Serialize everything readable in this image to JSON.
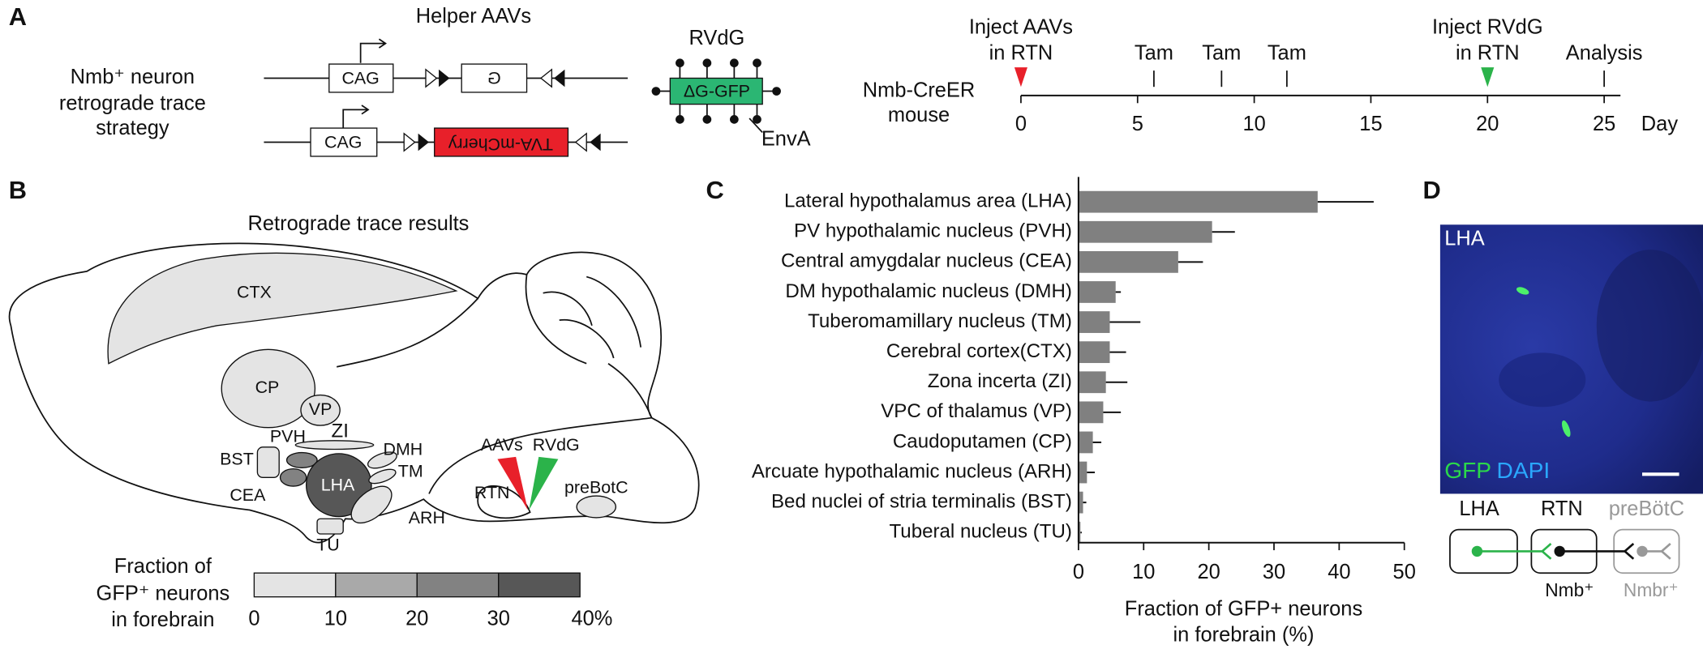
{
  "panel_a": {
    "letter": "A",
    "strategy": [
      "Nmb⁺ neuron",
      "retrograde trace",
      "strategy"
    ],
    "helper_title": "Helper AAVs",
    "constructs": [
      {
        "promoter": "CAG",
        "gene": "G"
      },
      {
        "promoter": "CAG",
        "gene": "TVA-mCherry"
      }
    ],
    "virus": {
      "title": "RVdG",
      "gene": "ΔG-GFP",
      "coat": "EnvA"
    },
    "timeline": {
      "subject": [
        "Nmb-CreER",
        "mouse"
      ],
      "unit": "Day",
      "ticks": [
        0,
        5,
        10,
        15,
        20,
        25
      ],
      "events": [
        {
          "label": [
            "Inject AAVs",
            "in RTN"
          ],
          "day": 0,
          "marker": "triangle",
          "color": "#e8202a"
        },
        {
          "label": [
            "Tam"
          ],
          "day": 5.7,
          "marker": "tick"
        },
        {
          "label": [
            "Tam"
          ],
          "day": 8.6,
          "marker": "tick"
        },
        {
          "label": [
            "Tam"
          ],
          "day": 11.4,
          "marker": "tick"
        },
        {
          "label": [
            "Inject RVdG",
            "in RTN"
          ],
          "day": 20,
          "marker": "triangle",
          "color": "#2bb34a"
        },
        {
          "label": [
            "Analysis"
          ],
          "day": 25,
          "marker": "tick"
        }
      ]
    }
  },
  "panel_b": {
    "letter": "B",
    "title": "Retrograde trace results",
    "regions": [
      "CTX",
      "CP",
      "VP",
      "ZI",
      "PVH",
      "BST",
      "CEA",
      "LHA",
      "DMH",
      "TM",
      "ARH",
      "TU",
      "RTN",
      "preBotC"
    ],
    "injections": [
      "AAVs",
      "RVdG"
    ],
    "legend": {
      "title": [
        "Fraction of",
        "GFP⁺ neurons",
        "in forebrain"
      ],
      "ticks": [
        0,
        10,
        20,
        30,
        {
          "value": 40,
          "label": "40%"
        }
      ],
      "colors": [
        "#e4e4e4",
        "#a9a9a9",
        "#828282",
        "#575757"
      ]
    }
  },
  "chart_data": {
    "type": "bar",
    "orientation": "horizontal",
    "letter": "C",
    "categories": [
      "Lateral hypothalamus area (LHA)",
      "PV hypothalamic nucleus (PVH)",
      "Central amygdalar nucleus (CEA)",
      "DM hypothalamic nucleus (DMH)",
      "Tuberomamillary nucleus (TM)",
      "Cerebral cortex(CTX)",
      "Zona incerta (ZI)",
      "VPC of thalamus (VP)",
      "Caudoputamen (CP)",
      "Arcuate hypothalamic nucleus (ARH)",
      "Bed nuclei of stria terminalis (BST)",
      "Tuberal nucleus (TU)"
    ],
    "values": [
      36.7,
      20.5,
      15.3,
      5.7,
      4.8,
      4.8,
      4.2,
      3.8,
      2.2,
      1.3,
      0.7,
      0.3
    ],
    "errors": [
      8.6,
      3.5,
      3.8,
      0.8,
      4.7,
      2.5,
      3.3,
      2.7,
      1.3,
      1.2,
      0.5,
      0.2
    ],
    "color": "#808080",
    "xlim": [
      0,
      50
    ],
    "xticks": [
      0,
      10,
      20,
      30,
      40,
      50
    ],
    "x_label": [
      "Fraction of GFP+ neurons",
      "in forebrain (%)"
    ]
  },
  "panel_d": {
    "letter": "D",
    "image_region": "LHA",
    "stains": [
      "GFP",
      "DAPI"
    ],
    "circuit": {
      "nodes": [
        "LHA",
        "RTN",
        "preBötC"
      ],
      "cells": [
        "Nmb⁺",
        "Nmbr⁺"
      ]
    }
  }
}
